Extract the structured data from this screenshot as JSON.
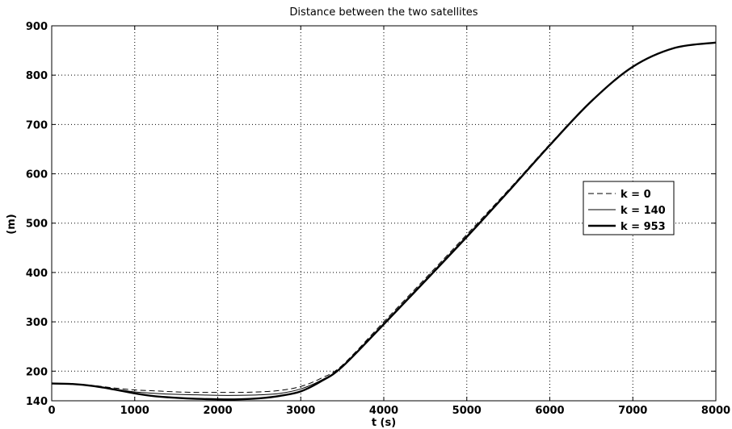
{
  "chart_data": {
    "type": "line",
    "title": "Distance between the two satellites",
    "xlabel": "t (s)",
    "ylabel": "(m)",
    "xlim": [
      0,
      8000
    ],
    "ylim": [
      140,
      900
    ],
    "xticks": [
      0,
      1000,
      2000,
      3000,
      4000,
      5000,
      6000,
      7000,
      8000
    ],
    "yticks": [
      140,
      200,
      300,
      400,
      500,
      600,
      700,
      800,
      900
    ],
    "grid": true,
    "legend_position": "right",
    "series": [
      {
        "name": "k = 0",
        "style": "dashed",
        "x": [
          0,
          250,
          500,
          750,
          1000,
          1250,
          1500,
          1750,
          2000,
          2250,
          2500,
          2750,
          3000,
          3250,
          3500,
          4000,
          4500,
          5000,
          5500,
          6000,
          6500,
          7000,
          7500,
          8000
        ],
        "y": [
          175,
          174,
          171,
          166,
          162,
          160,
          158,
          157,
          157,
          157,
          158,
          161,
          169,
          186,
          212,
          300,
          388,
          477,
          567,
          660,
          748,
          817,
          855,
          866
        ]
      },
      {
        "name": "k = 140",
        "style": "thin",
        "x": [
          0,
          250,
          500,
          750,
          1000,
          1250,
          1500,
          1750,
          2000,
          2250,
          2500,
          2750,
          3000,
          3250,
          3500,
          4000,
          4500,
          5000,
          5500,
          6000,
          6500,
          7000,
          7500,
          8000
        ],
        "y": [
          175,
          174,
          170,
          164,
          158,
          155,
          153,
          152,
          151,
          151,
          152,
          155,
          164,
          182,
          210,
          297,
          385,
          474,
          565,
          659,
          747,
          817,
          855,
          866
        ]
      },
      {
        "name": "k = 953",
        "style": "thick",
        "x": [
          0,
          250,
          500,
          750,
          1000,
          1250,
          1500,
          1750,
          2000,
          2250,
          2500,
          2750,
          3000,
          3250,
          3500,
          4000,
          4500,
          5000,
          5500,
          6000,
          6500,
          7000,
          7500,
          8000
        ],
        "y": [
          175,
          174,
          170,
          163,
          155,
          149,
          146,
          144,
          143,
          143,
          145,
          150,
          159,
          180,
          209,
          295,
          383,
          472,
          564,
          658,
          747,
          817,
          855,
          866
        ]
      }
    ]
  }
}
